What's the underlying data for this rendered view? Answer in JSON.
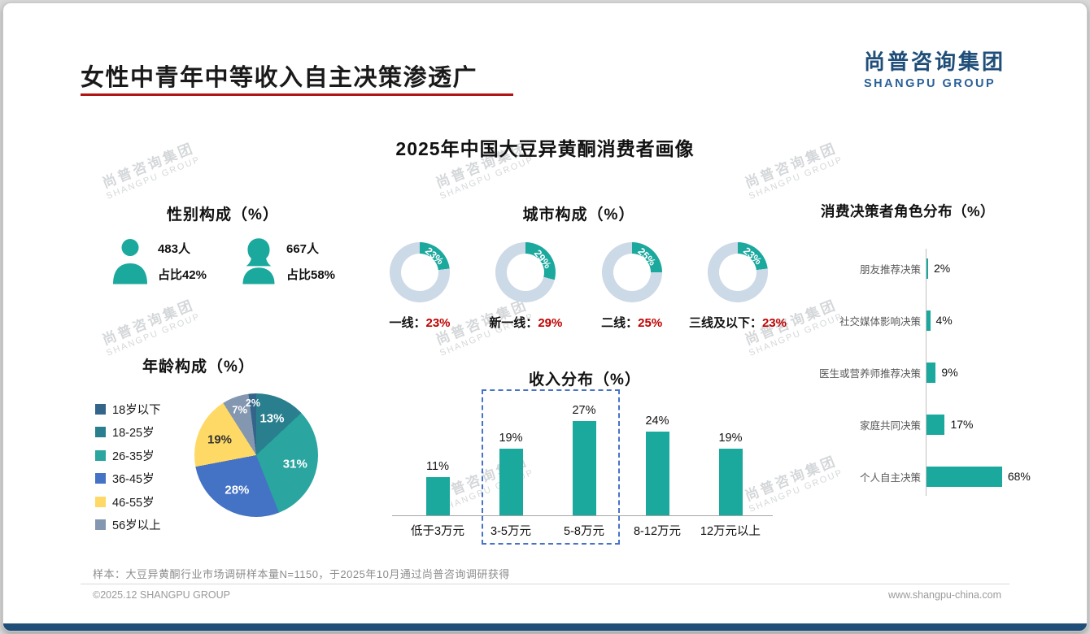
{
  "page": {
    "title": "女性中青年中等收入自主决策渗透广",
    "subtitle": "2025年中国大豆异黄酮消费者画像",
    "logo": {
      "cn": "尚普咨询集团",
      "en": "SHANGPU GROUP"
    },
    "watermark": {
      "cn": "尚普咨询集团",
      "en": "SHANGPU GROUP"
    },
    "sample_note": "样本：大豆异黄酮行业市场调研样本量N=1150，于2025年10月通过尚普咨询调研获得",
    "footer_left": "©2025.12 SHANGPU GROUP",
    "footer_right": "www.shangpu-china.com"
  },
  "colors": {
    "teal": "#1ba89d",
    "donut_rest": "#ccd9e6",
    "accent_red": "#c00000",
    "logo_navy": "#1f4e79",
    "underline_red": "#b01513",
    "dash_blue": "#4673c8"
  },
  "chart_data": [
    {
      "id": "gender",
      "type": "pictogram",
      "title": "性别构成（%）",
      "items": [
        {
          "icon": "male-icon",
          "count": "483人",
          "share": "占比42%",
          "percent": 42
        },
        {
          "icon": "female-icon",
          "count": "667人",
          "share": "占比58%",
          "percent": 58
        }
      ]
    },
    {
      "id": "city",
      "type": "donut",
      "title": "城市构成（%）",
      "unit": "%",
      "items": [
        {
          "label": "一线：",
          "value": 23
        },
        {
          "label": "新一线：",
          "value": 29
        },
        {
          "label": "二线：",
          "value": 25
        },
        {
          "label": "三线及以下：",
          "value": 23
        }
      ]
    },
    {
      "id": "decision",
      "type": "bar-horizontal",
      "title": "消费决策者角色分布（%）",
      "categories": [
        "朋友推荐决策",
        "社交媒体影响决策",
        "医生或营养师推荐决策",
        "家庭共同决策",
        "个人自主决策"
      ],
      "values": [
        2,
        4,
        9,
        17,
        68
      ],
      "xlim": [
        0,
        70
      ]
    },
    {
      "id": "age",
      "type": "pie",
      "title": "年龄构成（%）",
      "legend_order": [
        "18岁以下",
        "18-25岁",
        "26-35岁",
        "36-45岁",
        "46-55岁",
        "56岁以上"
      ],
      "slices": [
        {
          "label": "18-25岁",
          "value": 13,
          "color": "#2a7f8f"
        },
        {
          "label": "26-35岁",
          "value": 31,
          "color": "#2aa5a0"
        },
        {
          "label": "36-45岁",
          "value": 28,
          "color": "#4472c4"
        },
        {
          "label": "46-55岁",
          "value": 19,
          "color": "#ffd966"
        },
        {
          "label": "56岁以上",
          "value": 7,
          "color": "#8497b0"
        },
        {
          "label": "18岁以下",
          "value": 2,
          "color": "#33658a"
        }
      ]
    },
    {
      "id": "income",
      "type": "bar",
      "title": "收入分布（%）",
      "categories": [
        "低于3万元",
        "3-5万元",
        "5-8万元",
        "8-12万元",
        "12万元以上"
      ],
      "values": [
        11,
        19,
        27,
        24,
        19
      ],
      "highlight_box_categories": [
        "3-5万元",
        "5-8万元"
      ],
      "ylim": [
        0,
        30
      ]
    }
  ]
}
